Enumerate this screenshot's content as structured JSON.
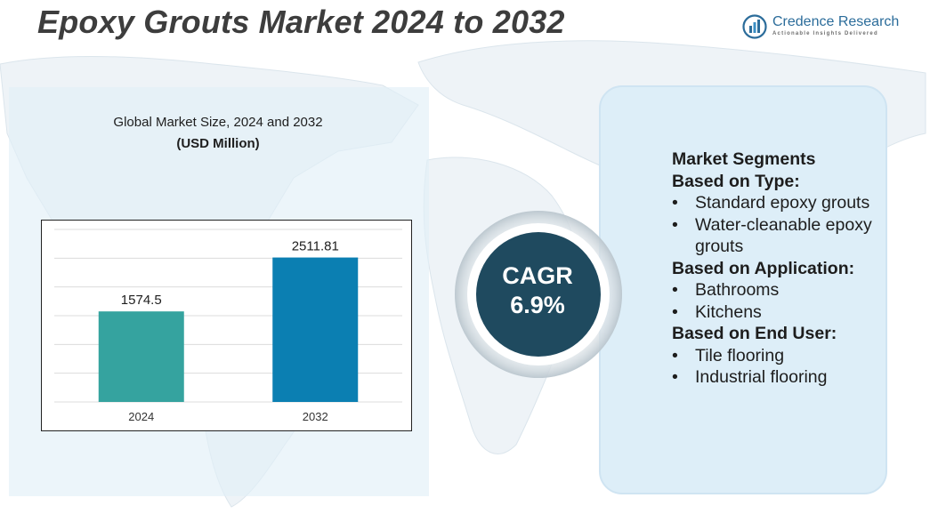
{
  "title": "Epoxy Grouts Market 2024 to 2032",
  "logo": {
    "name": "Credence Research",
    "tagline": "Actionable Insights Delivered",
    "icon": "bar-chart-logo-icon"
  },
  "chart_heading": {
    "line1": "Global Market Size, 2024 and 2032",
    "line2": "(USD Million)"
  },
  "chart_data": {
    "type": "bar",
    "categories": [
      "2024",
      "2032"
    ],
    "values": [
      1574.5,
      2511.81
    ],
    "value_labels": [
      "1574.5",
      "2511.81"
    ],
    "bar_colors": [
      "#35a39f",
      "#0b7fb2"
    ],
    "ylim": [
      0,
      3000
    ],
    "grid": true,
    "legend": "none"
  },
  "cagr": {
    "label": "CAGR",
    "value": "6.9%"
  },
  "segments": {
    "title": "Market Segments",
    "groups": [
      {
        "heading": "Based on Type:",
        "items": [
          "Standard epoxy grouts",
          "Water-cleanable epoxy grouts"
        ]
      },
      {
        "heading": "Based on Application:",
        "items": [
          "Bathrooms",
          "Kitchens"
        ]
      },
      {
        "heading": "Based on End User:",
        "items": [
          "Tile flooring",
          "Industrial flooring"
        ]
      }
    ]
  },
  "colors": {
    "title": "#3d3d3d",
    "panel": "#ddeef8",
    "cagr_circle": "#1f4a5f",
    "brand": "#2b6c9a"
  }
}
